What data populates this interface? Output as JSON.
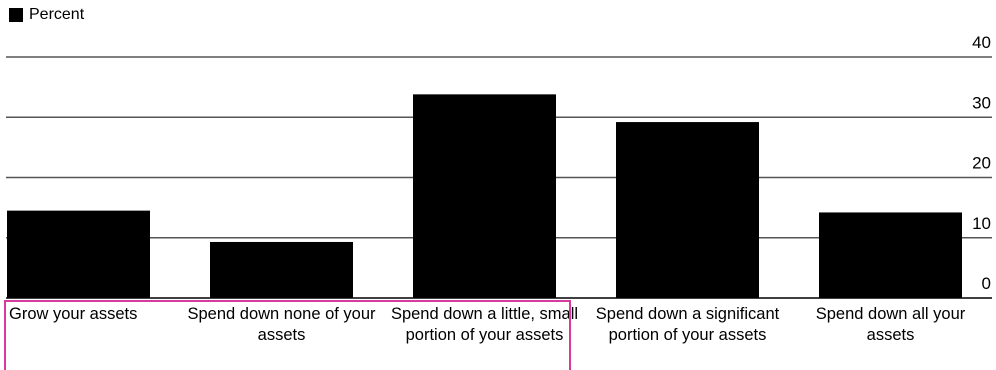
{
  "legend": {
    "label": "Percent",
    "color": "#000000"
  },
  "highlight_color": "#d63ca0",
  "chart_data": {
    "type": "bar",
    "categories": [
      "Grow your assets",
      "Spend down none of your assets",
      "Spend down a little, small portion of your assets",
      "Spend down a significant portion of your assets",
      "Spend down all your assets"
    ],
    "series": [
      {
        "name": "Percent",
        "values": [
          14.5,
          9.3,
          33.8,
          29.2,
          14.2
        ],
        "color": "#000000"
      }
    ],
    "yticks": [
      "0",
      "10",
      "20",
      "30",
      "40"
    ],
    "ylim": [
      0,
      40
    ],
    "grid": true,
    "legend_position": "top-left"
  }
}
